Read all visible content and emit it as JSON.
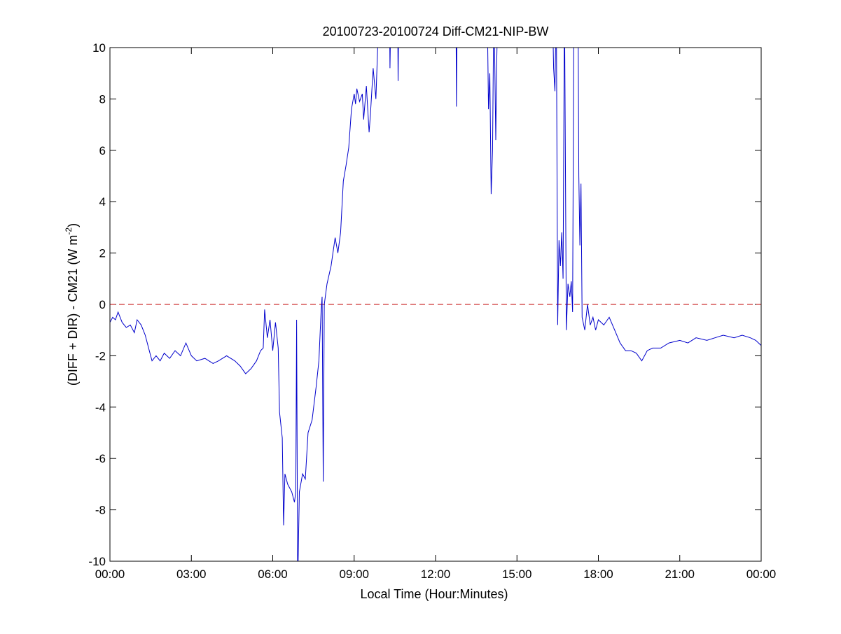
{
  "chart_data": {
    "type": "line",
    "title": "20100723-20100724 Diff-CM21-NIP-BW",
    "xlabel": "Local Time (Hour:Minutes)",
    "ylabel_main": "(DIFF + DIR) - CM21 (W m",
    "ylabel_sup": "-2",
    "ylabel_close": ")",
    "xlim_hours": [
      0,
      24
    ],
    "ylim": [
      -10,
      10
    ],
    "xticks": [
      {
        "hours": 0,
        "label": "00:00"
      },
      {
        "hours": 3,
        "label": "03:00"
      },
      {
        "hours": 6,
        "label": "06:00"
      },
      {
        "hours": 9,
        "label": "09:00"
      },
      {
        "hours": 12,
        "label": "12:00"
      },
      {
        "hours": 15,
        "label": "15:00"
      },
      {
        "hours": 18,
        "label": "18:00"
      },
      {
        "hours": 21,
        "label": "21:00"
      },
      {
        "hours": 24,
        "label": "00:00"
      }
    ],
    "yticks": [
      -10,
      -8,
      -6,
      -4,
      -2,
      0,
      2,
      4,
      6,
      8,
      10
    ],
    "grid": false,
    "reference_line": {
      "y": 0,
      "color": "#c00000",
      "style": "dashed"
    },
    "series": [
      {
        "color": "#0000cc",
        "points_hours_value": [
          [
            0.0,
            -0.7
          ],
          [
            0.1,
            -0.5
          ],
          [
            0.2,
            -0.6
          ],
          [
            0.3,
            -0.3
          ],
          [
            0.45,
            -0.7
          ],
          [
            0.6,
            -0.9
          ],
          [
            0.75,
            -0.8
          ],
          [
            0.9,
            -1.1
          ],
          [
            1.0,
            -0.6
          ],
          [
            1.15,
            -0.8
          ],
          [
            1.3,
            -1.2
          ],
          [
            1.45,
            -1.8
          ],
          [
            1.55,
            -2.2
          ],
          [
            1.7,
            -2.0
          ],
          [
            1.85,
            -2.2
          ],
          [
            2.0,
            -1.9
          ],
          [
            2.2,
            -2.1
          ],
          [
            2.4,
            -1.8
          ],
          [
            2.6,
            -2.0
          ],
          [
            2.8,
            -1.5
          ],
          [
            3.0,
            -2.0
          ],
          [
            3.2,
            -2.2
          ],
          [
            3.5,
            -2.1
          ],
          [
            3.8,
            -2.3
          ],
          [
            4.0,
            -2.2
          ],
          [
            4.3,
            -2.0
          ],
          [
            4.6,
            -2.2
          ],
          [
            4.8,
            -2.4
          ],
          [
            5.0,
            -2.7
          ],
          [
            5.2,
            -2.5
          ],
          [
            5.4,
            -2.2
          ],
          [
            5.55,
            -1.8
          ],
          [
            5.65,
            -1.7
          ],
          [
            5.7,
            -0.2
          ],
          [
            5.8,
            -1.3
          ],
          [
            5.9,
            -0.6
          ],
          [
            6.0,
            -1.8
          ],
          [
            6.1,
            -0.7
          ],
          [
            6.2,
            -1.7
          ],
          [
            6.25,
            -4.2
          ],
          [
            6.35,
            -5.2
          ],
          [
            6.4,
            -8.6
          ],
          [
            6.45,
            -6.6
          ],
          [
            6.55,
            -7.0
          ],
          [
            6.7,
            -7.3
          ],
          [
            6.8,
            -7.7
          ],
          [
            6.85,
            -7.3
          ],
          [
            6.88,
            -0.6
          ],
          [
            6.92,
            -11
          ],
          [
            6.98,
            -7.3
          ],
          [
            7.1,
            -6.6
          ],
          [
            7.2,
            -6.8
          ],
          [
            7.3,
            -5.0
          ],
          [
            7.45,
            -4.5
          ],
          [
            7.6,
            -3.2
          ],
          [
            7.7,
            -2.2
          ],
          [
            7.78,
            -0.3
          ],
          [
            7.82,
            0.3
          ],
          [
            7.86,
            -6.9
          ],
          [
            7.9,
            0.0
          ],
          [
            8.0,
            0.8
          ],
          [
            8.15,
            1.5
          ],
          [
            8.3,
            2.6
          ],
          [
            8.4,
            2.0
          ],
          [
            8.5,
            2.8
          ],
          [
            8.6,
            4.8
          ],
          [
            8.7,
            5.4
          ],
          [
            8.8,
            6.1
          ],
          [
            8.9,
            7.6
          ],
          [
            9.0,
            8.2
          ],
          [
            9.05,
            7.8
          ],
          [
            9.1,
            8.4
          ],
          [
            9.2,
            7.9
          ],
          [
            9.3,
            8.2
          ],
          [
            9.35,
            7.2
          ],
          [
            9.45,
            8.5
          ],
          [
            9.55,
            6.7
          ],
          [
            9.6,
            7.4
          ],
          [
            9.7,
            9.2
          ],
          [
            9.8,
            8.0
          ],
          [
            9.9,
            11
          ],
          [
            10.1,
            12
          ],
          [
            10.3,
            12
          ],
          [
            10.32,
            9.2
          ],
          [
            10.36,
            12
          ],
          [
            10.6,
            12
          ],
          [
            10.62,
            8.7
          ],
          [
            10.65,
            12
          ],
          [
            12.75,
            12
          ],
          [
            12.77,
            7.7
          ],
          [
            12.8,
            12
          ],
          [
            13.9,
            12
          ],
          [
            13.95,
            7.6
          ],
          [
            14.0,
            9
          ],
          [
            14.05,
            4.3
          ],
          [
            14.1,
            6
          ],
          [
            14.15,
            12
          ],
          [
            14.22,
            6.4
          ],
          [
            14.25,
            9.2
          ],
          [
            14.3,
            12
          ],
          [
            16.3,
            12
          ],
          [
            16.35,
            9.2
          ],
          [
            16.4,
            8.3
          ],
          [
            16.45,
            12
          ],
          [
            16.5,
            -0.8
          ],
          [
            16.55,
            2.5
          ],
          [
            16.6,
            1.5
          ],
          [
            16.65,
            2.8
          ],
          [
            16.7,
            1.0
          ],
          [
            16.75,
            12
          ],
          [
            16.82,
            -1.0
          ],
          [
            16.88,
            0.8
          ],
          [
            16.95,
            0.3
          ],
          [
            17.0,
            0.9
          ],
          [
            17.05,
            -0.3
          ],
          [
            17.1,
            12
          ],
          [
            17.25,
            12
          ],
          [
            17.28,
            5.0
          ],
          [
            17.32,
            2.3
          ],
          [
            17.36,
            4.7
          ],
          [
            17.4,
            -0.5
          ],
          [
            17.5,
            -1.0
          ],
          [
            17.6,
            0.0
          ],
          [
            17.7,
            -0.8
          ],
          [
            17.8,
            -0.5
          ],
          [
            17.9,
            -1.0
          ],
          [
            18.0,
            -0.6
          ],
          [
            18.2,
            -0.8
          ],
          [
            18.4,
            -0.5
          ],
          [
            18.6,
            -1.0
          ],
          [
            18.8,
            -1.5
          ],
          [
            19.0,
            -1.8
          ],
          [
            19.2,
            -1.8
          ],
          [
            19.4,
            -1.9
          ],
          [
            19.6,
            -2.2
          ],
          [
            19.8,
            -1.8
          ],
          [
            20.0,
            -1.7
          ],
          [
            20.3,
            -1.7
          ],
          [
            20.6,
            -1.5
          ],
          [
            21.0,
            -1.4
          ],
          [
            21.3,
            -1.5
          ],
          [
            21.6,
            -1.3
          ],
          [
            22.0,
            -1.4
          ],
          [
            22.3,
            -1.3
          ],
          [
            22.6,
            -1.2
          ],
          [
            23.0,
            -1.3
          ],
          [
            23.3,
            -1.2
          ],
          [
            23.6,
            -1.3
          ],
          [
            23.8,
            -1.4
          ],
          [
            24.0,
            -1.6
          ]
        ]
      }
    ]
  }
}
